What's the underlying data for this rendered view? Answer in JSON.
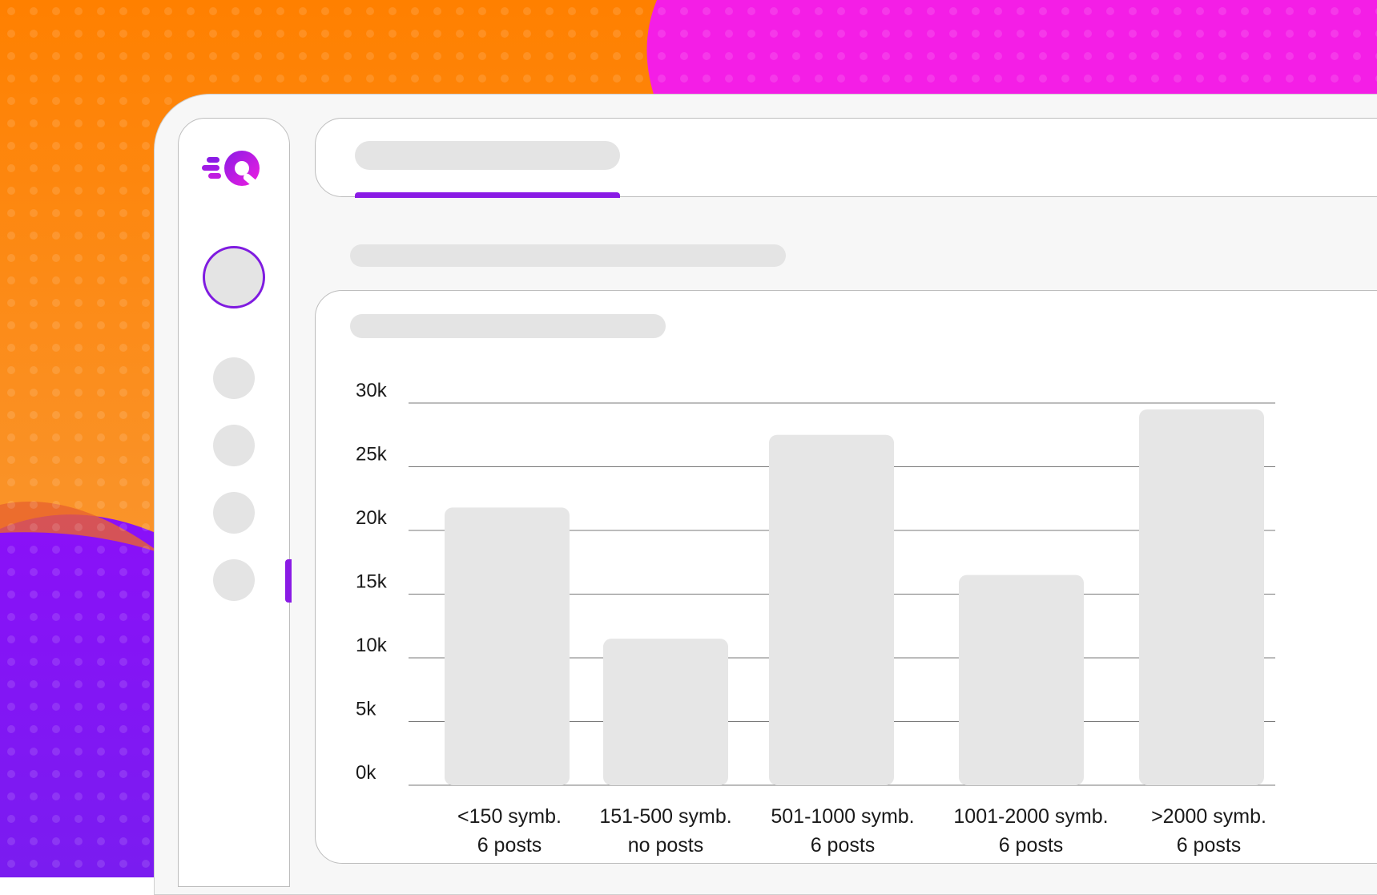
{
  "colors": {
    "accent": "#8a1be5",
    "placeholder": "#e4e4e4",
    "bar": "#e6e6e6",
    "bg_orange": "#ff8a1a",
    "bg_magenta": "#f01ee0",
    "bg_purple": "#8614f5"
  },
  "sidebar": {
    "logo_icon": "quick-q-logo-icon",
    "nav_items": [
      "nav-item-1",
      "nav-item-2",
      "nav-item-3",
      "nav-item-4"
    ]
  },
  "chart_data": {
    "type": "bar",
    "categories": [
      [
        "<150 symb.",
        "6 posts"
      ],
      [
        "151-500 symb.",
        "no posts"
      ],
      [
        "501-1000 symb.",
        "6 posts"
      ],
      [
        "1001-2000 symb.",
        "6 posts"
      ],
      [
        ">2000 symb.",
        "6 posts"
      ]
    ],
    "values": [
      21800,
      11500,
      27500,
      16500,
      29500
    ],
    "ylim": [
      0,
      30000
    ],
    "yticks": [
      {
        "value": 0,
        "label": "0k"
      },
      {
        "value": 5000,
        "label": "5k"
      },
      {
        "value": 10000,
        "label": "10k"
      },
      {
        "value": 15000,
        "label": "15k"
      },
      {
        "value": 20000,
        "label": "20k"
      },
      {
        "value": 25000,
        "label": "25k"
      },
      {
        "value": 30000,
        "label": "30k"
      }
    ],
    "grid": true,
    "title": "",
    "xlabel": "",
    "ylabel": ""
  }
}
